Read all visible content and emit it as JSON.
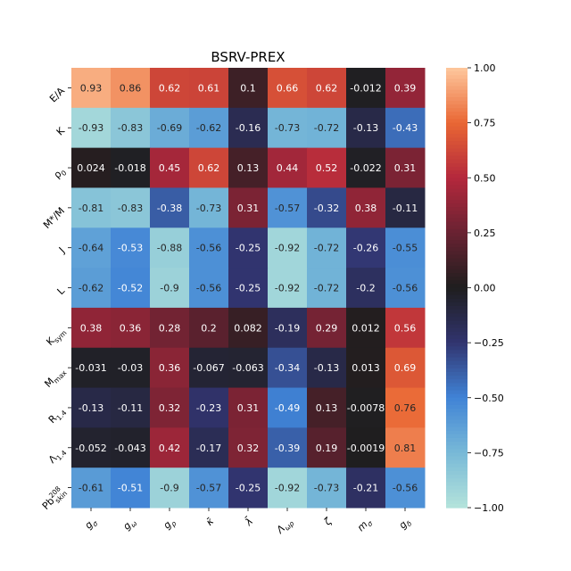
{
  "chart_data": {
    "type": "heatmap",
    "title": "BSRV-PREX",
    "x_labels": [
      "g_σ",
      "g_ω",
      "g_ρ",
      "κ̄",
      "λ̄",
      "Λ_ωρ",
      "ζ",
      "m_σ",
      "g_δ"
    ],
    "y_labels": [
      "E/A",
      "K",
      "ρ_0",
      "M*/M",
      "J",
      "L",
      "K_sym",
      "M_max",
      "R_1.4",
      "Λ_1.4",
      "Pb^208_skin"
    ],
    "values": [
      [
        0.93,
        0.86,
        0.62,
        0.61,
        0.1,
        0.66,
        0.62,
        -0.012,
        0.39
      ],
      [
        -0.93,
        -0.83,
        -0.69,
        -0.62,
        -0.16,
        -0.73,
        -0.72,
        -0.13,
        -0.43
      ],
      [
        0.024,
        -0.018,
        0.45,
        0.62,
        0.13,
        0.44,
        0.52,
        -0.022,
        0.31
      ],
      [
        -0.81,
        -0.83,
        -0.38,
        -0.73,
        0.31,
        -0.57,
        -0.32,
        0.38,
        -0.11
      ],
      [
        -0.64,
        -0.53,
        -0.88,
        -0.56,
        -0.25,
        -0.92,
        -0.72,
        -0.26,
        -0.55
      ],
      [
        -0.62,
        -0.52,
        -0.9,
        -0.56,
        -0.25,
        -0.92,
        -0.72,
        -0.2,
        -0.56
      ],
      [
        0.38,
        0.36,
        0.28,
        0.2,
        0.082,
        -0.19,
        0.29,
        0.012,
        0.56
      ],
      [
        -0.031,
        -0.03,
        0.36,
        -0.067,
        -0.063,
        -0.34,
        -0.13,
        0.013,
        0.69
      ],
      [
        -0.13,
        -0.11,
        0.32,
        -0.23,
        0.31,
        -0.49,
        0.13,
        -0.0078,
        0.76
      ],
      [
        -0.052,
        -0.043,
        0.42,
        -0.17,
        0.32,
        -0.39,
        0.19,
        -0.0019,
        0.81
      ],
      [
        -0.61,
        -0.51,
        -0.9,
        -0.57,
        -0.25,
        -0.92,
        -0.73,
        -0.21,
        -0.56
      ]
    ],
    "colorbar": {
      "range": [
        -1.0,
        1.0
      ],
      "ticks": [
        "1.00",
        "0.75",
        "0.50",
        "0.25",
        "0.00",
        "−0.25",
        "−0.50",
        "−0.75",
        "−1.00"
      ],
      "colormap": "icefire"
    }
  }
}
